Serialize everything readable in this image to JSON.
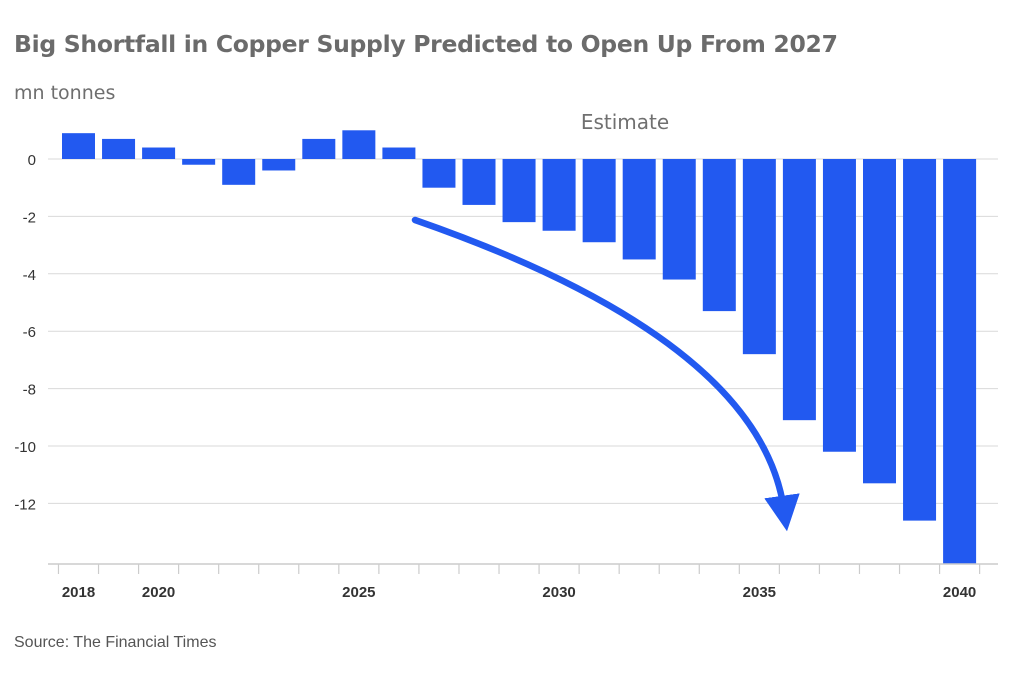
{
  "chart_data": {
    "type": "bar",
    "title": "Big Shortfall in Copper Supply Predicted to Open Up From 2027",
    "ylabel": "mn tonnes",
    "xlabel": "",
    "annotation": "Estimate",
    "source": "Source: The Financial Times",
    "x": [
      2018,
      2019,
      2020,
      2021,
      2022,
      2023,
      2024,
      2025,
      2026,
      2027,
      2028,
      2029,
      2030,
      2031,
      2032,
      2033,
      2034,
      2035,
      2036,
      2037,
      2038,
      2039,
      2040
    ],
    "values": [
      0.9,
      0.7,
      0.4,
      -0.2,
      -0.9,
      -0.4,
      0.7,
      1.0,
      0.4,
      -1.0,
      -1.6,
      -2.2,
      -2.5,
      -2.9,
      -3.5,
      -4.2,
      -5.3,
      -6.8,
      -9.1,
      -10.2,
      -11.3,
      -12.6,
      -14.1
    ],
    "x_tick_labels": [
      "2018",
      "2020",
      "2025",
      "2030",
      "2035",
      "2040"
    ],
    "y_ticks": [
      0,
      -2,
      -4,
      -6,
      -8,
      -10,
      -12
    ],
    "y_tick_labels": [
      "0",
      "-2",
      "-4",
      "-6",
      "-8",
      "-10",
      "-12"
    ],
    "ylim": [
      -14.1,
      1.0
    ],
    "grid": true,
    "bar_color": "#2259f0"
  }
}
